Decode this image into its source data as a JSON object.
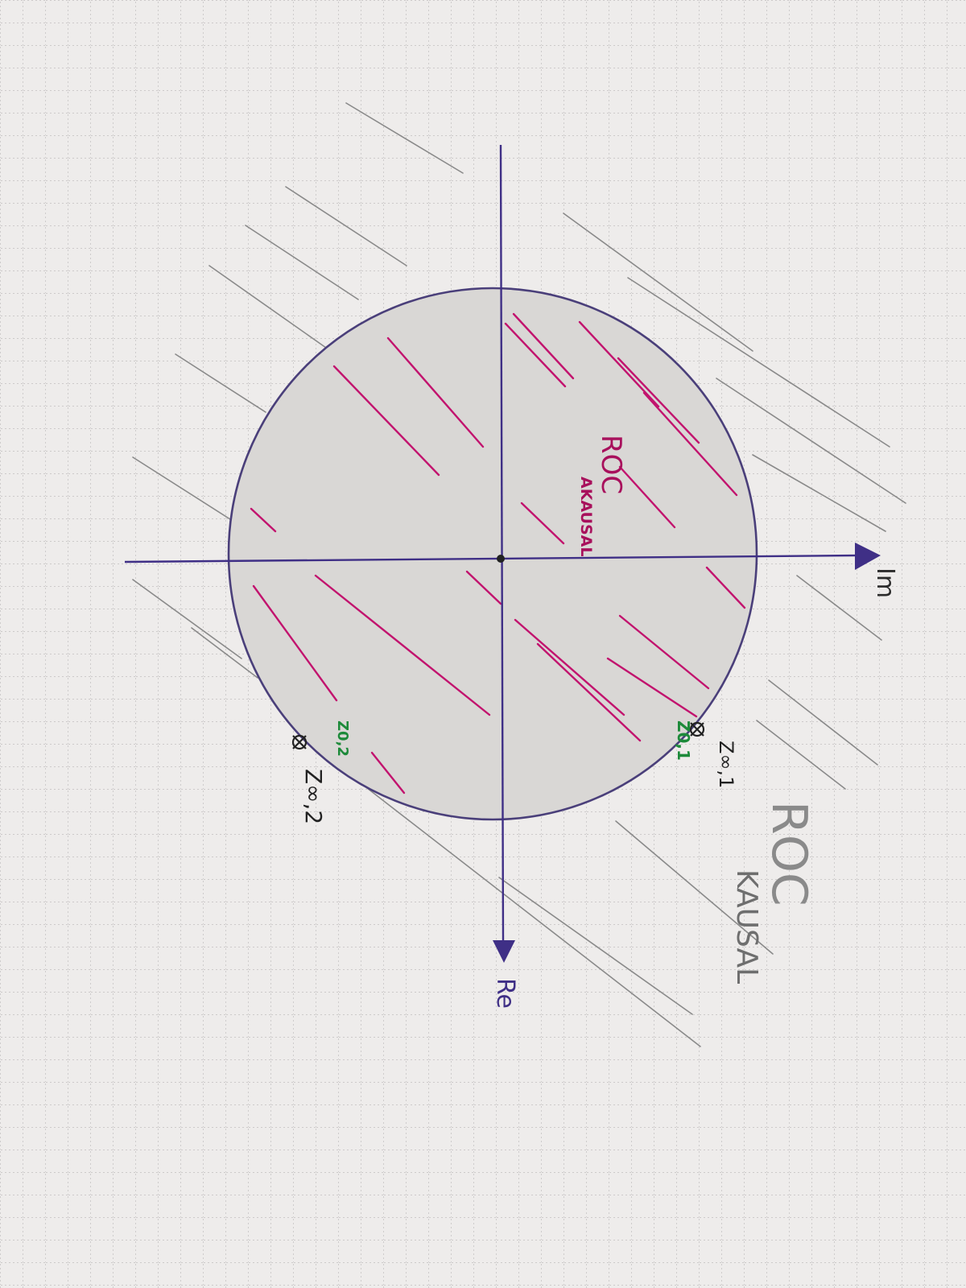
{
  "diagram": {
    "axis_labels": {
      "real": "Re",
      "imag": "Im"
    },
    "region_labels": {
      "inside_main": "ROC",
      "inside_sub": "AKAUSAL",
      "outside_main": "ROC",
      "outside_sub": "KAUSAL"
    },
    "points": [
      {
        "pole_label": "Z∞,1",
        "zero_label": "Z0,1"
      },
      {
        "pole_label": "Z∞,2",
        "zero_label": "Z0,2"
      }
    ],
    "colors": {
      "paper": "#eeeceb",
      "grid": "#b9b6b6",
      "axis_ink": "#3f2f86",
      "circle_ink": "#4a3f7a",
      "inside_hatch": "#c2136e",
      "outside_hatch": "#8a8a8a",
      "zero_label": "#1d8a3a",
      "pole_ink": "#222222"
    }
  }
}
